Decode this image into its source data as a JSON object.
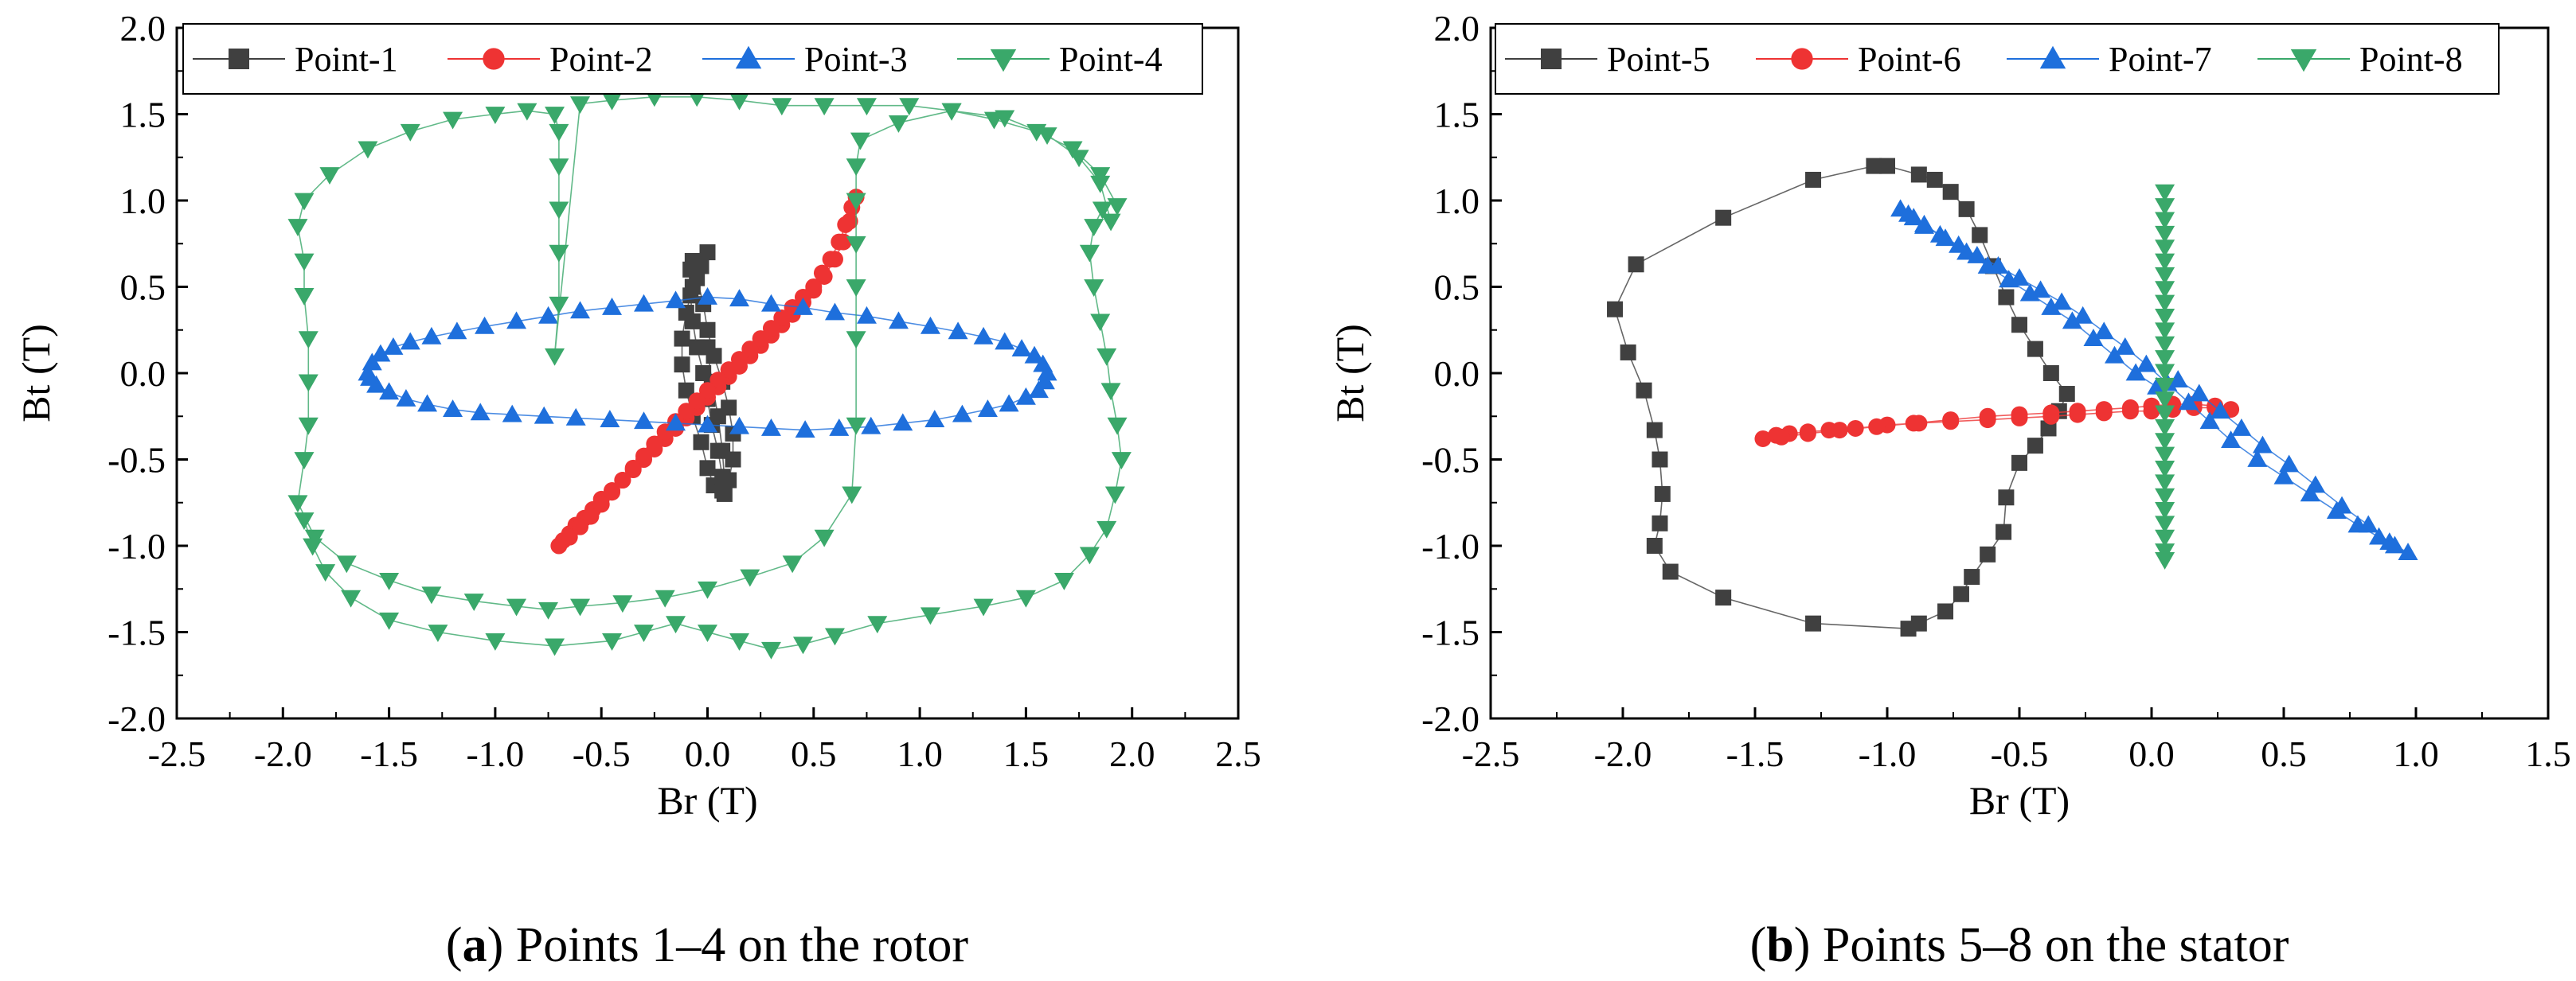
{
  "chart_data": [
    {
      "id": "a",
      "type": "scatter",
      "caption_letter": "a",
      "caption_text": "Points 1–4 on the rotor",
      "xlabel": "Br (T)",
      "ylabel": "Bt (T)",
      "xlim": [
        -2.5,
        2.5
      ],
      "ylim": [
        -2.0,
        2.0
      ],
      "xticks": [
        -2.5,
        -2.0,
        -1.5,
        -1.0,
        -0.5,
        0.0,
        0.5,
        1.0,
        1.5,
        2.0,
        2.5
      ],
      "yticks": [
        -2.0,
        -1.5,
        -1.0,
        -0.5,
        0.0,
        0.5,
        1.0,
        1.5,
        2.0
      ],
      "grid": false,
      "legend_position": "top",
      "series": [
        {
          "name": "Point-1",
          "marker": "square",
          "color": "#404040",
          "x": [
            0.0,
            -0.03,
            -0.07,
            -0.1,
            -0.12,
            -0.12,
            -0.1,
            -0.07,
            -0.03,
            0.0,
            0.03,
            0.07,
            0.1,
            0.12,
            0.12,
            0.1,
            0.07,
            0.03,
            0.0,
            -0.02,
            -0.05,
            -0.07,
            -0.08,
            -0.08,
            -0.07,
            -0.05,
            -0.02,
            0.0,
            0.02,
            0.05,
            0.07,
            0.08,
            0.08,
            0.07,
            0.05,
            0.02,
            0.0
          ],
          "y": [
            0.7,
            0.62,
            0.5,
            0.35,
            0.2,
            0.05,
            -0.1,
            -0.25,
            -0.4,
            -0.55,
            -0.65,
            -0.68,
            -0.62,
            -0.5,
            -0.35,
            -0.2,
            -0.05,
            0.1,
            0.25,
            0.4,
            0.55,
            0.65,
            0.6,
            0.45,
            0.3,
            0.15,
            0.0,
            -0.15,
            -0.3,
            -0.45,
            -0.6,
            -0.7,
            -0.62,
            -0.45,
            -0.25,
            -0.05,
            0.15
          ]
        },
        {
          "name": "Point-2",
          "marker": "circle",
          "color": "#ee3333",
          "x": [
            -0.7,
            -0.68,
            -0.65,
            -0.62,
            -0.58,
            -0.54,
            -0.5,
            -0.45,
            -0.4,
            -0.35,
            -0.3,
            -0.25,
            -0.2,
            -0.15,
            -0.1,
            -0.05,
            0.0,
            0.05,
            0.1,
            0.15,
            0.2,
            0.25,
            0.3,
            0.35,
            0.4,
            0.45,
            0.5,
            0.55,
            0.6,
            0.64,
            0.67,
            0.7,
            0.68,
            0.65,
            0.62,
            0.58,
            0.54,
            0.5,
            0.45,
            0.4,
            0.35,
            0.3,
            0.25,
            0.2,
            0.15,
            0.1,
            0.05,
            0.0,
            -0.05,
            -0.1,
            -0.15,
            -0.2,
            -0.25,
            -0.3,
            -0.35,
            -0.4,
            -0.45,
            -0.5,
            -0.55,
            -0.6,
            -0.65
          ],
          "y": [
            -1.0,
            -0.97,
            -0.93,
            -0.88,
            -0.84,
            -0.79,
            -0.73,
            -0.68,
            -0.62,
            -0.56,
            -0.5,
            -0.44,
            -0.38,
            -0.32,
            -0.26,
            -0.2,
            -0.14,
            -0.08,
            -0.02,
            0.04,
            0.1,
            0.16,
            0.22,
            0.28,
            0.34,
            0.41,
            0.48,
            0.56,
            0.66,
            0.76,
            0.88,
            1.02,
            0.96,
            0.86,
            0.76,
            0.66,
            0.58,
            0.5,
            0.44,
            0.38,
            0.32,
            0.26,
            0.2,
            0.14,
            0.08,
            0.02,
            -0.04,
            -0.1,
            -0.16,
            -0.22,
            -0.28,
            -0.34,
            -0.41,
            -0.48,
            -0.55,
            -0.62,
            -0.69,
            -0.76,
            -0.83,
            -0.89,
            -0.95
          ]
        },
        {
          "name": "Point-3",
          "marker": "triangle-up",
          "color": "#1e6fdc",
          "x": [
            -1.6,
            -1.58,
            -1.54,
            -1.48,
            -1.4,
            -1.3,
            -1.18,
            -1.05,
            -0.9,
            -0.75,
            -0.6,
            -0.45,
            -0.3,
            -0.15,
            0.0,
            0.15,
            0.3,
            0.45,
            0.6,
            0.75,
            0.9,
            1.05,
            1.18,
            1.3,
            1.4,
            1.48,
            1.54,
            1.58,
            1.6,
            1.59,
            1.56,
            1.5,
            1.42,
            1.32,
            1.2,
            1.07,
            0.92,
            0.77,
            0.62,
            0.46,
            0.3,
            0.15,
            0.0,
            -0.15,
            -0.3,
            -0.46,
            -0.62,
            -0.77,
            -0.92,
            -1.07,
            -1.2,
            -1.32,
            -1.42,
            -1.5,
            -1.56,
            -1.59
          ],
          "y": [
            0.0,
            0.06,
            0.11,
            0.15,
            0.18,
            0.21,
            0.24,
            0.27,
            0.3,
            0.33,
            0.36,
            0.38,
            0.4,
            0.42,
            0.44,
            0.43,
            0.4,
            0.38,
            0.35,
            0.33,
            0.3,
            0.27,
            0.24,
            0.21,
            0.18,
            0.14,
            0.1,
            0.05,
            0.0,
            -0.05,
            -0.1,
            -0.14,
            -0.18,
            -0.21,
            -0.24,
            -0.27,
            -0.29,
            -0.31,
            -0.32,
            -0.33,
            -0.32,
            -0.31,
            -0.3,
            -0.29,
            -0.28,
            -0.27,
            -0.26,
            -0.25,
            -0.24,
            -0.23,
            -0.21,
            -0.18,
            -0.15,
            -0.11,
            -0.07,
            -0.03
          ]
        },
        {
          "name": "Point-4",
          "marker": "triangle-down",
          "color": "#3aa86a",
          "x": [
            -1.9,
            -1.86,
            -1.8,
            -1.68,
            -1.5,
            -1.27,
            -1.0,
            -0.72,
            -0.45,
            -0.3,
            -0.15,
            0.0,
            0.15,
            0.3,
            0.45,
            0.6,
            0.8,
            1.05,
            1.3,
            1.5,
            1.68,
            1.8,
            1.88,
            1.92,
            1.95,
            1.93,
            1.9,
            1.88,
            1.85,
            1.82,
            1.8,
            1.82,
            1.86,
            1.9,
            1.85,
            1.75,
            1.6,
            1.4,
            1.15,
            0.9,
            0.72,
            0.7,
            0.7,
            0.7,
            0.7,
            0.7,
            0.7,
            0.68,
            0.55,
            0.4,
            0.2,
            0.0,
            -0.2,
            -0.4,
            -0.6,
            -0.75,
            -0.9,
            -1.1,
            -1.3,
            -1.5,
            -1.7,
            -1.85,
            -1.93,
            -1.9,
            -1.88,
            -1.88,
            -1.88,
            -1.9,
            -1.9,
            -1.93,
            -1.9,
            -1.78,
            -1.6,
            -1.4,
            -1.2,
            -1.0,
            -0.85,
            -0.72,
            -0.7,
            -0.7,
            -0.7,
            -0.7,
            -0.7,
            -0.72,
            -0.6,
            -0.45,
            -0.25,
            -0.05,
            0.15,
            0.35,
            0.55,
            0.75,
            0.95,
            1.15,
            1.35,
            1.55,
            1.72,
            1.85,
            1.93
          ],
          "y": [
            -0.85,
            -1.0,
            -1.15,
            -1.3,
            -1.43,
            -1.5,
            -1.55,
            -1.58,
            -1.55,
            -1.5,
            -1.45,
            -1.5,
            -1.55,
            -1.6,
            -1.57,
            -1.52,
            -1.45,
            -1.4,
            -1.35,
            -1.3,
            -1.2,
            -1.05,
            -0.9,
            -0.7,
            -0.5,
            -0.3,
            -0.1,
            0.1,
            0.3,
            0.5,
            0.7,
            0.85,
            0.95,
            0.88,
            1.1,
            1.25,
            1.38,
            1.48,
            1.52,
            1.45,
            1.35,
            1.2,
            1.0,
            0.75,
            0.5,
            0.2,
            -0.3,
            -0.7,
            -0.95,
            -1.1,
            -1.18,
            -1.25,
            -1.3,
            -1.33,
            -1.35,
            -1.37,
            -1.35,
            -1.32,
            -1.28,
            -1.2,
            -1.1,
            -0.95,
            -0.75,
            -0.5,
            -0.3,
            -0.05,
            0.2,
            0.45,
            0.65,
            0.85,
            1.0,
            1.15,
            1.3,
            1.4,
            1.47,
            1.5,
            1.52,
            1.5,
            1.4,
            1.2,
            0.95,
            0.7,
            0.4,
            0.1,
            1.56,
            1.58,
            1.6,
            1.6,
            1.58,
            1.55,
            1.55,
            1.55,
            1.55,
            1.52,
            1.47,
            1.4,
            1.3,
            1.15,
            0.97
          ]
        }
      ]
    },
    {
      "id": "b",
      "type": "scatter",
      "caption_letter": "b",
      "caption_text": "Points 5–8 on the stator",
      "xlabel": "Br (T)",
      "ylabel": "Bt (T)",
      "xlim": [
        -2.5,
        1.5
      ],
      "ylim": [
        -2.0,
        2.0
      ],
      "xticks": [
        -2.5,
        -2.0,
        -1.5,
        -1.0,
        -0.5,
        0.0,
        0.5,
        1.0,
        1.5
      ],
      "yticks": [
        -2.0,
        -1.5,
        -1.0,
        -0.5,
        0.0,
        0.5,
        1.0,
        1.5,
        2.0
      ],
      "grid": false,
      "legend_position": "top",
      "series": [
        {
          "name": "Point-5",
          "marker": "square",
          "color": "#404040",
          "x": [
            -1.05,
            -1.28,
            -1.62,
            -1.95,
            -2.03,
            -1.98,
            -1.92,
            -1.88,
            -1.86,
            -1.85,
            -1.86,
            -1.88,
            -1.82,
            -1.62,
            -1.28,
            -0.92,
            -0.88,
            -0.78,
            -0.72,
            -0.68,
            -0.62,
            -0.56,
            -0.55,
            -0.5,
            -0.44,
            -0.39,
            -0.35,
            -0.32,
            -0.38,
            -0.44,
            -0.5,
            -0.55,
            -0.6,
            -0.65,
            -0.7,
            -0.76,
            -0.82,
            -0.88,
            -1.0
          ],
          "y": [
            1.2,
            1.12,
            0.9,
            0.63,
            0.37,
            0.12,
            -0.1,
            -0.33,
            -0.5,
            -0.7,
            -0.87,
            -1.0,
            -1.15,
            -1.3,
            -1.45,
            -1.48,
            -1.45,
            -1.38,
            -1.28,
            -1.18,
            -1.05,
            -0.92,
            -0.72,
            -0.52,
            -0.42,
            -0.32,
            -0.22,
            -0.12,
            0.0,
            0.14,
            0.28,
            0.44,
            0.62,
            0.8,
            0.95,
            1.05,
            1.12,
            1.15,
            1.2
          ]
        },
        {
          "name": "Point-6",
          "marker": "circle",
          "color": "#ee3333",
          "x": [
            -1.47,
            -1.42,
            -1.37,
            -1.3,
            -1.22,
            -1.12,
            -1.0,
            -0.88,
            -0.76,
            -0.62,
            -0.5,
            -0.38,
            -0.28,
            -0.18,
            -0.08,
            0.0,
            0.08,
            0.16,
            0.24,
            0.3,
            0.24,
            0.16,
            0.08,
            0.0,
            -0.08,
            -0.18,
            -0.28,
            -0.38,
            -0.5,
            -0.62,
            -0.76,
            -0.9,
            -1.04,
            -1.18,
            -1.3,
            -1.4
          ],
          "y": [
            -0.38,
            -0.36,
            -0.35,
            -0.34,
            -0.33,
            -0.32,
            -0.3,
            -0.29,
            -0.28,
            -0.27,
            -0.26,
            -0.25,
            -0.24,
            -0.23,
            -0.22,
            -0.22,
            -0.21,
            -0.2,
            -0.2,
            -0.21,
            -0.19,
            -0.18,
            -0.18,
            -0.19,
            -0.2,
            -0.21,
            -0.22,
            -0.23,
            -0.24,
            -0.25,
            -0.27,
            -0.29,
            -0.31,
            -0.33,
            -0.35,
            -0.37
          ]
        },
        {
          "name": "Point-7",
          "marker": "triangle-up",
          "color": "#1e6fdc",
          "x": [
            -0.95,
            -0.9,
            -0.86,
            -0.8,
            -0.73,
            -0.66,
            -0.58,
            -0.5,
            -0.42,
            -0.34,
            -0.26,
            -0.18,
            -0.1,
            -0.02,
            0.06,
            0.14,
            0.22,
            0.3,
            0.4,
            0.5,
            0.6,
            0.7,
            0.78,
            0.86,
            0.92,
            0.97,
            0.9,
            0.82,
            0.72,
            0.62,
            0.52,
            0.42,
            0.34,
            0.26,
            0.18,
            0.1,
            0.02,
            -0.06,
            -0.14,
            -0.22,
            -0.3,
            -0.38,
            -0.46,
            -0.54,
            -0.62,
            -0.7,
            -0.78,
            -0.86,
            -0.92
          ],
          "y": [
            0.95,
            0.9,
            0.85,
            0.8,
            0.74,
            0.68,
            0.62,
            0.55,
            0.48,
            0.41,
            0.33,
            0.24,
            0.15,
            0.05,
            -0.06,
            -0.17,
            -0.28,
            -0.39,
            -0.5,
            -0.6,
            -0.7,
            -0.8,
            -0.88,
            -0.95,
            -1.0,
            -1.04,
            -0.98,
            -0.88,
            -0.77,
            -0.65,
            -0.53,
            -0.42,
            -0.32,
            -0.22,
            -0.12,
            -0.04,
            -0.08,
            0.0,
            0.1,
            0.2,
            0.3,
            0.38,
            0.46,
            0.54,
            0.62,
            0.7,
            0.78,
            0.86,
            0.92
          ]
        },
        {
          "name": "Point-8",
          "marker": "triangle-down",
          "color": "#3aa86a",
          "x": [
            0.05,
            0.05,
            0.05,
            0.05,
            0.05,
            0.05,
            0.05,
            0.05,
            0.05,
            0.05,
            0.05,
            0.05,
            0.05,
            0.05,
            0.05,
            0.05,
            0.05,
            0.05,
            0.05,
            0.05,
            0.05,
            0.05,
            0.05,
            0.05,
            0.05,
            0.05,
            0.05,
            0.05
          ],
          "y": [
            1.05,
            0.97,
            0.89,
            0.81,
            0.73,
            0.65,
            0.57,
            0.49,
            0.41,
            0.33,
            0.25,
            0.17,
            0.09,
            0.01,
            -0.07,
            -0.15,
            -0.23,
            -0.31,
            -0.39,
            -0.47,
            -0.55,
            -0.63,
            -0.71,
            -0.79,
            -0.87,
            -0.95,
            -1.03,
            -1.08
          ]
        }
      ]
    }
  ]
}
